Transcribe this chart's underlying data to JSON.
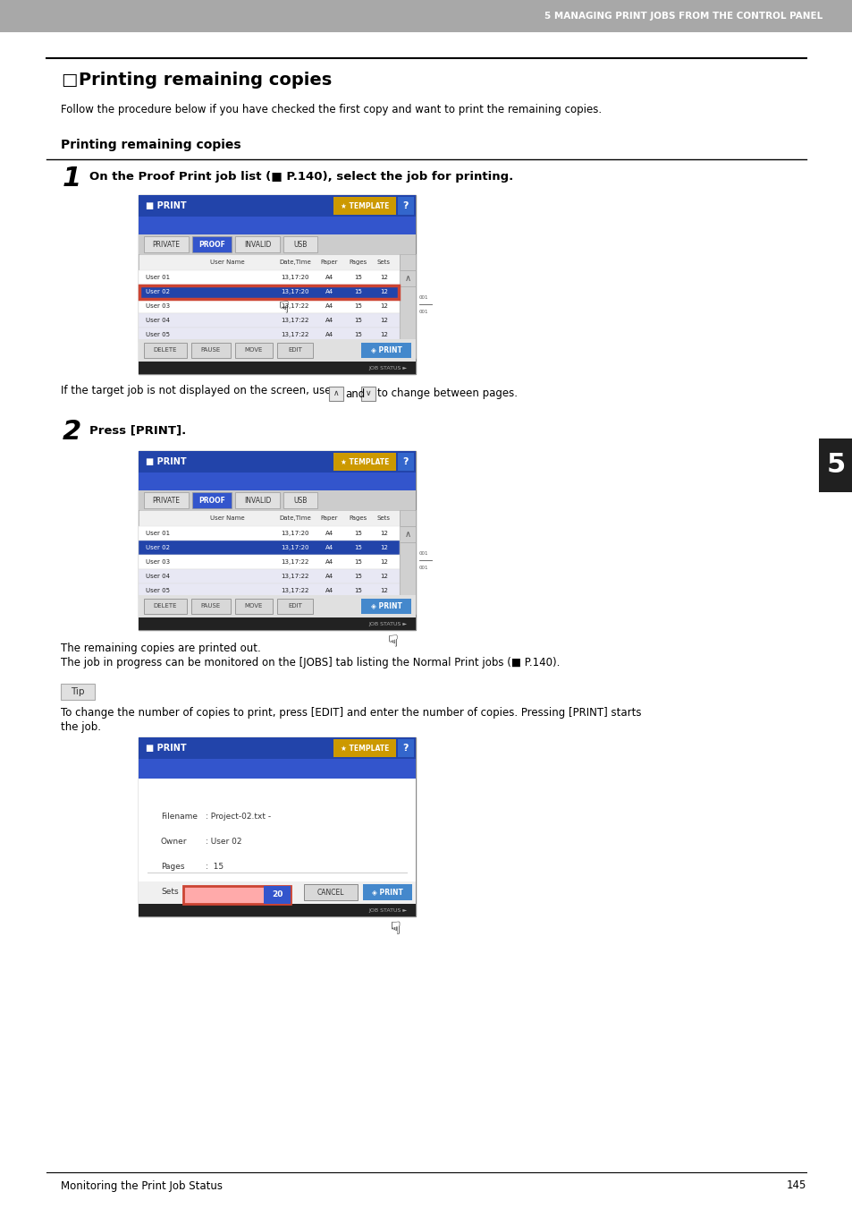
{
  "header_bg": "#a8a8a8",
  "header_text": "5 MANAGING PRINT JOBS FROM THE CONTROL PANEL",
  "header_text_color": "#ffffff",
  "page_bg": "#ffffff",
  "title_icon": "□",
  "title_text": "Printing remaining copies",
  "intro_text": "Follow the procedure below if you have checked the first copy and want to print the remaining copies.",
  "section_title": "Printing remaining copies",
  "step1_text": "On the Proof Print job list (■ P.140), select the job for printing.",
  "step2_text": "Press [PRINT].",
  "after_step2_line1": "The remaining copies are printed out.",
  "after_step2_line2": "The job in progress can be monitored on the [JOBS] tab listing the Normal Print jobs (■ P.140).",
  "tip_label": "Tip",
  "tip_text1": "To change the number of copies to print, press [EDIT] and enter the number of copies. Pressing [PRINT] starts",
  "tip_text2": "the job.",
  "footer_text": "Monitoring the Print Job Status",
  "footer_page": "145",
  "sidebar_num": "5",
  "screen_hdr_bg": "#2244aa",
  "screen_hdr2_bg": "#3355cc",
  "template_btn_bg": "#cc9900",
  "help_btn_bg": "#3366cc",
  "tab_proof_bg": "#3355cc",
  "tab_other_bg": "#e8e8e8",
  "tbl_hdr_bg": "#f0f0f0",
  "row_sel_bg": "#2244aa",
  "row_sel_fg": "#ffffff",
  "row_alt_bg": "#e8e8f4",
  "row_norm_bg": "#ffffff",
  "row_fg": "#222222",
  "sel_outline": "#cc4433",
  "print_btn_bg": "#4488cc",
  "delete_btn_bg": "#e0e0e0",
  "scroll_bg": "#d0d0d0",
  "jobstatus_bg": "#222222",
  "sets_box_bg": "#3355cc",
  "sets_outline": "#cc4433"
}
